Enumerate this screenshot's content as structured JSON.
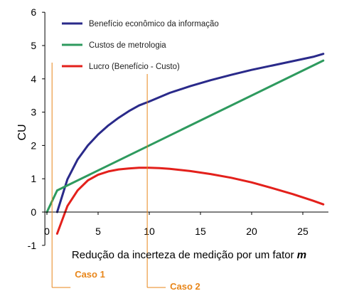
{
  "chart_data": {
    "type": "line",
    "xlabel": "Redução da incerteza de medição por um fator ",
    "xlabel_var": "m",
    "ylabel": "CU",
    "xlim": [
      -1,
      27.5
    ],
    "ylim": [
      -1,
      6
    ],
    "xticks": [
      0,
      5,
      10,
      15,
      20,
      25
    ],
    "yticks": [
      -1,
      0,
      1,
      2,
      3,
      4,
      5,
      6
    ],
    "grid": false,
    "legend_position": "top-left",
    "series": [
      {
        "name": "Benefício econômico da informação",
        "color": "#2a2a8a",
        "x": [
          1,
          2,
          3,
          4,
          5,
          6,
          7,
          8,
          9,
          10,
          12,
          14,
          16,
          18,
          20,
          22,
          24,
          26,
          27
        ],
        "y": [
          0.0,
          0.98,
          1.58,
          2.0,
          2.33,
          2.6,
          2.83,
          3.03,
          3.2,
          3.32,
          3.58,
          3.78,
          3.96,
          4.12,
          4.27,
          4.4,
          4.53,
          4.66,
          4.75
        ]
      },
      {
        "name": "Custos de metrologia",
        "color": "#2e9a5e",
        "x": [
          0,
          1,
          27
        ],
        "y": [
          0.0,
          0.65,
          4.55
        ]
      },
      {
        "name": "Lucro (Benefício - Custo)",
        "color": "#e3201b",
        "x": [
          1,
          2,
          3,
          4,
          5,
          6,
          7,
          8,
          9,
          10,
          11,
          12,
          14,
          16,
          18,
          20,
          22,
          24,
          26,
          27
        ],
        "y": [
          -0.65,
          0.18,
          0.65,
          0.95,
          1.12,
          1.22,
          1.28,
          1.31,
          1.33,
          1.33,
          1.32,
          1.3,
          1.23,
          1.14,
          1.03,
          0.89,
          0.72,
          0.54,
          0.34,
          0.23
        ]
      }
    ],
    "annotations": [
      {
        "label": "Caso 1",
        "x": 0.5,
        "color": "#e8861a"
      },
      {
        "label": "Caso 2",
        "x": 9.8,
        "color": "#e8861a"
      }
    ]
  }
}
